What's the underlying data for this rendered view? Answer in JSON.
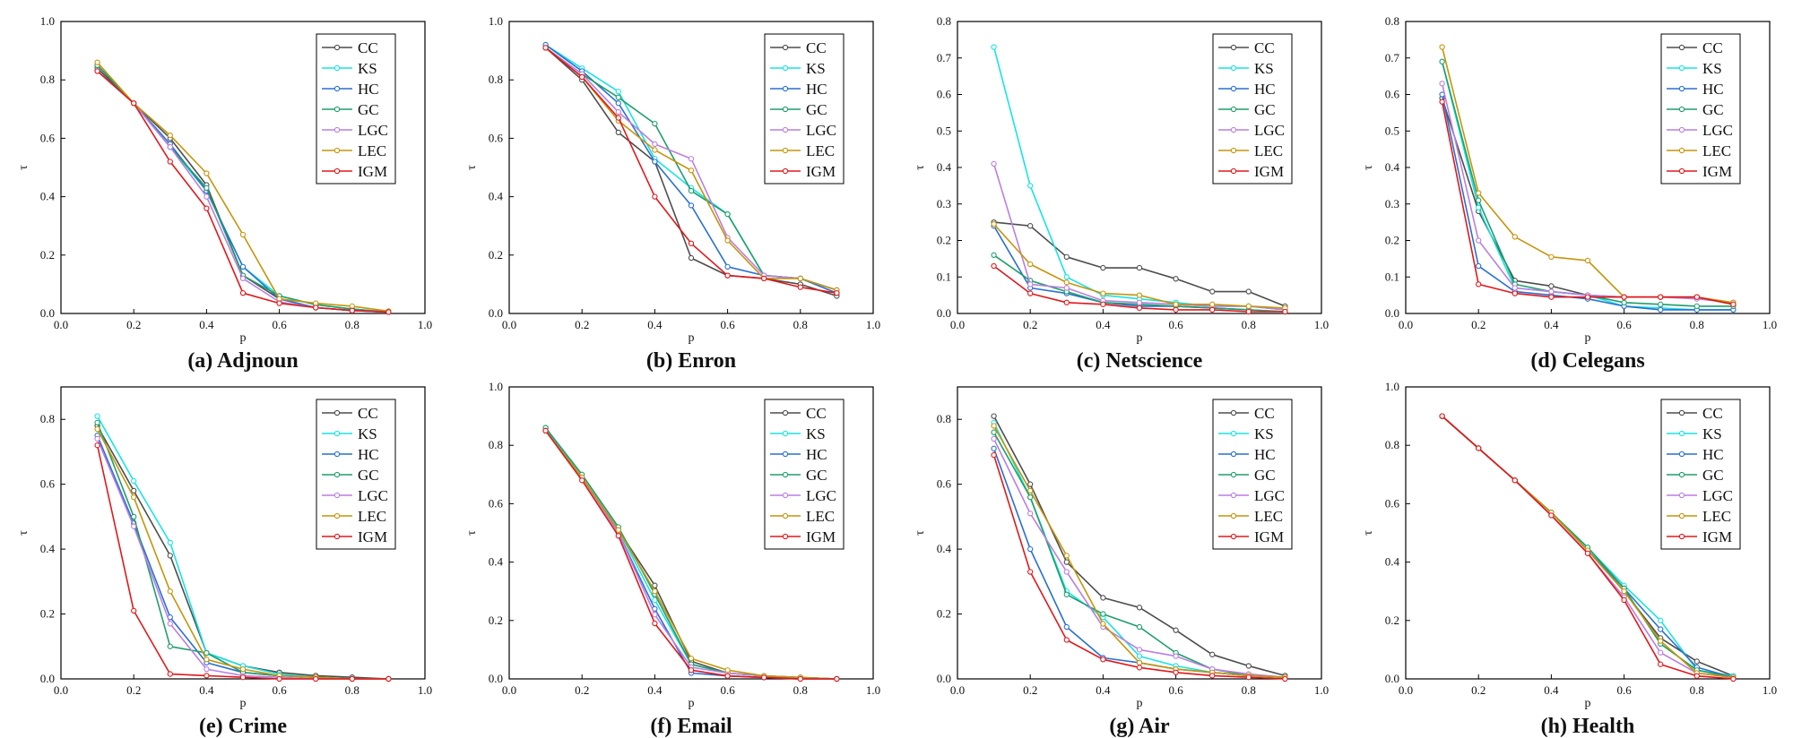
{
  "colors": {
    "CC": "#4d4d4d",
    "KS": "#19e3e3",
    "HC": "#2a6fd1",
    "GC": "#1f9e6b",
    "LGC": "#bb7fe0",
    "LEC": "#c4950c",
    "IGM": "#e0181c"
  },
  "chart_data": [
    {
      "type": "line",
      "caption": "(a) Adjnoun",
      "xlabel": "p",
      "ylabel": "τ",
      "xlim": [
        0.0,
        1.0
      ],
      "ylim": [
        0.0,
        1.0
      ],
      "xticks": [
        "0.0",
        "0.2",
        "0.4",
        "0.6",
        "0.8",
        "1.0"
      ],
      "yticks": [
        "0.0",
        "0.2",
        "0.4",
        "0.6",
        "0.8",
        "1.0"
      ],
      "x": [
        0.1,
        0.2,
        0.3,
        0.4,
        0.5,
        0.6,
        0.7,
        0.8,
        0.9
      ],
      "series": [
        {
          "name": "CC",
          "values": [
            0.84,
            0.72,
            0.6,
            0.44,
            0.13,
            0.05,
            0.02,
            0.01,
            0.005
          ]
        },
        {
          "name": "KS",
          "values": [
            0.85,
            0.72,
            0.57,
            0.42,
            0.16,
            0.06,
            0.03,
            0.015,
            0.005
          ]
        },
        {
          "name": "HC",
          "values": [
            0.85,
            0.72,
            0.58,
            0.42,
            0.16,
            0.05,
            0.02,
            0.01,
            0.005
          ]
        },
        {
          "name": "GC",
          "values": [
            0.85,
            0.72,
            0.57,
            0.43,
            0.13,
            0.06,
            0.03,
            0.015,
            0.005
          ]
        },
        {
          "name": "LGC",
          "values": [
            0.83,
            0.72,
            0.57,
            0.4,
            0.12,
            0.04,
            0.02,
            0.01,
            0.005
          ]
        },
        {
          "name": "LEC",
          "values": [
            0.86,
            0.72,
            0.61,
            0.48,
            0.27,
            0.05,
            0.035,
            0.025,
            0.008
          ]
        },
        {
          "name": "IGM",
          "values": [
            0.83,
            0.72,
            0.52,
            0.36,
            0.07,
            0.035,
            0.02,
            0.01,
            0.005
          ]
        }
      ]
    },
    {
      "type": "line",
      "caption": "(b) Enron",
      "xlabel": "p",
      "ylabel": "τ",
      "xlim": [
        0.0,
        1.0
      ],
      "ylim": [
        0.0,
        1.0
      ],
      "xticks": [
        "0.0",
        "0.2",
        "0.4",
        "0.6",
        "0.8",
        "1.0"
      ],
      "yticks": [
        "0.0",
        "0.2",
        "0.4",
        "0.6",
        "0.8",
        "1.0"
      ],
      "x": [
        0.1,
        0.2,
        0.3,
        0.4,
        0.5,
        0.6,
        0.7,
        0.8,
        0.9
      ],
      "series": [
        {
          "name": "CC",
          "values": [
            0.91,
            0.8,
            0.62,
            0.52,
            0.19,
            0.13,
            0.12,
            0.1,
            0.06
          ]
        },
        {
          "name": "KS",
          "values": [
            0.92,
            0.84,
            0.76,
            0.53,
            0.43,
            0.34,
            0.13,
            0.12,
            0.08
          ]
        },
        {
          "name": "HC",
          "values": [
            0.92,
            0.83,
            0.72,
            0.52,
            0.37,
            0.16,
            0.13,
            0.12,
            0.07
          ]
        },
        {
          "name": "GC",
          "values": [
            0.91,
            0.82,
            0.74,
            0.65,
            0.42,
            0.34,
            0.13,
            0.12,
            0.08
          ]
        },
        {
          "name": "LGC",
          "values": [
            0.91,
            0.82,
            0.69,
            0.58,
            0.53,
            0.26,
            0.13,
            0.12,
            0.08
          ]
        },
        {
          "name": "LEC",
          "values": [
            0.91,
            0.81,
            0.66,
            0.56,
            0.49,
            0.25,
            0.12,
            0.12,
            0.08
          ]
        },
        {
          "name": "IGM",
          "values": [
            0.91,
            0.81,
            0.67,
            0.4,
            0.24,
            0.13,
            0.12,
            0.09,
            0.07
          ]
        }
      ]
    },
    {
      "type": "line",
      "caption": "(c) Netscience",
      "xlabel": "p",
      "ylabel": "τ",
      "xlim": [
        0.0,
        1.0
      ],
      "ylim": [
        0.0,
        0.8
      ],
      "xticks": [
        "0.0",
        "0.2",
        "0.4",
        "0.6",
        "0.8",
        "1.0"
      ],
      "yticks": [
        "0.0",
        "0.1",
        "0.2",
        "0.3",
        "0.4",
        "0.5",
        "0.6",
        "0.7",
        "0.8"
      ],
      "x": [
        0.1,
        0.2,
        0.3,
        0.4,
        0.5,
        0.6,
        0.7,
        0.8,
        0.9
      ],
      "series": [
        {
          "name": "CC",
          "values": [
            0.25,
            0.24,
            0.155,
            0.125,
            0.125,
            0.095,
            0.06,
            0.06,
            0.02
          ]
        },
        {
          "name": "KS",
          "values": [
            0.73,
            0.35,
            0.1,
            0.05,
            0.04,
            0.03,
            0.02,
            0.02,
            0.01
          ]
        },
        {
          "name": "HC",
          "values": [
            0.24,
            0.07,
            0.055,
            0.03,
            0.02,
            0.02,
            0.015,
            0.01,
            0.005
          ]
        },
        {
          "name": "GC",
          "values": [
            0.16,
            0.09,
            0.06,
            0.03,
            0.025,
            0.02,
            0.015,
            0.01,
            0.005
          ]
        },
        {
          "name": "LGC",
          "values": [
            0.41,
            0.08,
            0.07,
            0.035,
            0.03,
            0.025,
            0.02,
            0.02,
            0.01
          ]
        },
        {
          "name": "LEC",
          "values": [
            0.245,
            0.135,
            0.085,
            0.055,
            0.05,
            0.025,
            0.025,
            0.02,
            0.015
          ]
        },
        {
          "name": "IGM",
          "values": [
            0.13,
            0.055,
            0.03,
            0.025,
            0.015,
            0.01,
            0.01,
            0.005,
            0.005
          ]
        }
      ]
    },
    {
      "type": "line",
      "caption": "(d) Celegans",
      "xlabel": "p",
      "ylabel": "τ",
      "xlim": [
        0.0,
        1.0
      ],
      "ylim": [
        0.0,
        0.8
      ],
      "xticks": [
        "0.0",
        "0.2",
        "0.4",
        "0.6",
        "0.8",
        "1.0"
      ],
      "yticks": [
        "0.0",
        "0.1",
        "0.2",
        "0.3",
        "0.4",
        "0.5",
        "0.6",
        "0.7",
        "0.8"
      ],
      "x": [
        0.1,
        0.2,
        0.3,
        0.4,
        0.5,
        0.6,
        0.7,
        0.8,
        0.9
      ],
      "series": [
        {
          "name": "CC",
          "values": [
            0.59,
            0.28,
            0.09,
            0.075,
            0.05,
            0.045,
            0.045,
            0.045,
            0.025
          ]
        },
        {
          "name": "KS",
          "values": [
            0.69,
            0.29,
            0.07,
            0.06,
            0.05,
            0.02,
            0.015,
            0.01,
            0.01
          ]
        },
        {
          "name": "HC",
          "values": [
            0.6,
            0.13,
            0.06,
            0.05,
            0.04,
            0.02,
            0.01,
            0.01,
            0.01
          ]
        },
        {
          "name": "GC",
          "values": [
            0.69,
            0.31,
            0.08,
            0.06,
            0.05,
            0.03,
            0.025,
            0.02,
            0.02
          ]
        },
        {
          "name": "LGC",
          "values": [
            0.63,
            0.2,
            0.07,
            0.06,
            0.05,
            0.045,
            0.045,
            0.04,
            0.03
          ]
        },
        {
          "name": "LEC",
          "values": [
            0.73,
            0.33,
            0.21,
            0.155,
            0.145,
            0.045,
            0.045,
            0.045,
            0.03
          ]
        },
        {
          "name": "IGM",
          "values": [
            0.58,
            0.08,
            0.055,
            0.045,
            0.045,
            0.045,
            0.045,
            0.045,
            0.025
          ]
        }
      ]
    },
    {
      "type": "line",
      "caption": "(e) Crime",
      "xlabel": "p",
      "ylabel": "τ",
      "xlim": [
        0.0,
        1.0
      ],
      "ylim": [
        0.0,
        0.9
      ],
      "xticks": [
        "0.0",
        "0.2",
        "0.4",
        "0.6",
        "0.8",
        "1.0"
      ],
      "yticks": [
        "0.0",
        "0.2",
        "0.4",
        "0.6",
        "0.8"
      ],
      "x": [
        0.1,
        0.2,
        0.3,
        0.4,
        0.5,
        0.6,
        0.7,
        0.8,
        0.9
      ],
      "series": [
        {
          "name": "CC",
          "values": [
            0.78,
            0.58,
            0.38,
            0.08,
            0.04,
            0.02,
            0.01,
            0.005,
            0.0
          ]
        },
        {
          "name": "KS",
          "values": [
            0.81,
            0.61,
            0.42,
            0.08,
            0.04,
            0.015,
            0.005,
            0.0,
            0.0
          ]
        },
        {
          "name": "HC",
          "values": [
            0.75,
            0.48,
            0.19,
            0.05,
            0.02,
            0.01,
            0.005,
            0.0,
            0.0
          ]
        },
        {
          "name": "GC",
          "values": [
            0.79,
            0.5,
            0.1,
            0.08,
            0.02,
            0.01,
            0.005,
            0.0,
            0.0
          ]
        },
        {
          "name": "LGC",
          "values": [
            0.74,
            0.47,
            0.17,
            0.03,
            0.01,
            0.005,
            0.0,
            0.0,
            0.0
          ]
        },
        {
          "name": "LEC",
          "values": [
            0.77,
            0.56,
            0.27,
            0.06,
            0.03,
            0.01,
            0.005,
            0.0,
            0.0
          ]
        },
        {
          "name": "IGM",
          "values": [
            0.72,
            0.21,
            0.015,
            0.01,
            0.005,
            0.0,
            0.0,
            0.0,
            0.0
          ]
        }
      ]
    },
    {
      "type": "line",
      "caption": "(f) Email",
      "xlabel": "p",
      "ylabel": "τ",
      "xlim": [
        0.0,
        1.0
      ],
      "ylim": [
        0.0,
        1.0
      ],
      "xticks": [
        "0.0",
        "0.2",
        "0.4",
        "0.6",
        "0.8",
        "1.0"
      ],
      "yticks": [
        "0.0",
        "0.2",
        "0.4",
        "0.6",
        "0.8",
        "1.0"
      ],
      "x": [
        0.1,
        0.2,
        0.3,
        0.4,
        0.5,
        0.6,
        0.7,
        0.8,
        0.9
      ],
      "series": [
        {
          "name": "CC",
          "values": [
            0.85,
            0.69,
            0.51,
            0.32,
            0.06,
            0.02,
            0.01,
            0.005,
            0.0
          ]
        },
        {
          "name": "KS",
          "values": [
            0.86,
            0.69,
            0.51,
            0.27,
            0.05,
            0.02,
            0.01,
            0.005,
            0.0
          ]
        },
        {
          "name": "HC",
          "values": [
            0.85,
            0.69,
            0.5,
            0.24,
            0.02,
            0.01,
            0.005,
            0.0,
            0.0
          ]
        },
        {
          "name": "GC",
          "values": [
            0.86,
            0.7,
            0.52,
            0.29,
            0.05,
            0.02,
            0.01,
            0.005,
            0.0
          ]
        },
        {
          "name": "LGC",
          "values": [
            0.85,
            0.69,
            0.5,
            0.22,
            0.04,
            0.02,
            0.01,
            0.005,
            0.0
          ]
        },
        {
          "name": "LEC",
          "values": [
            0.85,
            0.69,
            0.51,
            0.3,
            0.07,
            0.03,
            0.01,
            0.005,
            0.0
          ]
        },
        {
          "name": "IGM",
          "values": [
            0.85,
            0.68,
            0.49,
            0.19,
            0.03,
            0.01,
            0.005,
            0.0,
            0.0
          ]
        }
      ]
    },
    {
      "type": "line",
      "caption": "(g) Air",
      "xlabel": "p",
      "ylabel": "τ",
      "xlim": [
        0.0,
        1.0
      ],
      "ylim": [
        0.0,
        0.9
      ],
      "xticks": [
        "0.0",
        "0.2",
        "0.4",
        "0.6",
        "0.8",
        "1.0"
      ],
      "yticks": [
        "0.0",
        "0.2",
        "0.4",
        "0.6",
        "0.8"
      ],
      "x": [
        0.1,
        0.2,
        0.3,
        0.4,
        0.5,
        0.6,
        0.7,
        0.8,
        0.9
      ],
      "series": [
        {
          "name": "CC",
          "values": [
            0.81,
            0.6,
            0.36,
            0.25,
            0.22,
            0.15,
            0.075,
            0.04,
            0.01
          ]
        },
        {
          "name": "KS",
          "values": [
            0.79,
            0.56,
            0.27,
            0.19,
            0.07,
            0.04,
            0.02,
            0.01,
            0.005
          ]
        },
        {
          "name": "HC",
          "values": [
            0.71,
            0.4,
            0.16,
            0.065,
            0.05,
            0.03,
            0.02,
            0.01,
            0.005
          ]
        },
        {
          "name": "GC",
          "values": [
            0.76,
            0.56,
            0.26,
            0.2,
            0.16,
            0.08,
            0.03,
            0.01,
            0.005
          ]
        },
        {
          "name": "LGC",
          "values": [
            0.74,
            0.51,
            0.33,
            0.16,
            0.09,
            0.07,
            0.03,
            0.015,
            0.005
          ]
        },
        {
          "name": "LEC",
          "values": [
            0.78,
            0.58,
            0.38,
            0.17,
            0.05,
            0.03,
            0.02,
            0.01,
            0.005
          ]
        },
        {
          "name": "IGM",
          "values": [
            0.69,
            0.33,
            0.12,
            0.06,
            0.035,
            0.02,
            0.01,
            0.005,
            0.0
          ]
        }
      ]
    },
    {
      "type": "line",
      "caption": "(h) Health",
      "xlabel": "p",
      "ylabel": "τ",
      "xlim": [
        0.0,
        1.0
      ],
      "ylim": [
        0.0,
        1.0
      ],
      "xticks": [
        "0.0",
        "0.2",
        "0.4",
        "0.6",
        "0.8",
        "1.0"
      ],
      "yticks": [
        "0.0",
        "0.2",
        "0.4",
        "0.6",
        "0.8",
        "1.0"
      ],
      "x": [
        0.1,
        0.2,
        0.3,
        0.4,
        0.5,
        0.6,
        0.7,
        0.8,
        0.9
      ],
      "series": [
        {
          "name": "CC",
          "values": [
            0.9,
            0.79,
            0.68,
            0.57,
            0.44,
            0.3,
            0.14,
            0.06,
            0.01
          ]
        },
        {
          "name": "KS",
          "values": [
            0.9,
            0.79,
            0.68,
            0.57,
            0.45,
            0.32,
            0.2,
            0.03,
            0.01
          ]
        },
        {
          "name": "HC",
          "values": [
            0.9,
            0.79,
            0.68,
            0.57,
            0.44,
            0.31,
            0.17,
            0.04,
            0.005
          ]
        },
        {
          "name": "GC",
          "values": [
            0.9,
            0.79,
            0.68,
            0.57,
            0.45,
            0.31,
            0.12,
            0.03,
            0.005
          ]
        },
        {
          "name": "LGC",
          "values": [
            0.9,
            0.79,
            0.68,
            0.56,
            0.43,
            0.28,
            0.09,
            0.02,
            0.005
          ]
        },
        {
          "name": "LEC",
          "values": [
            0.9,
            0.79,
            0.68,
            0.57,
            0.44,
            0.3,
            0.13,
            0.02,
            0.005
          ]
        },
        {
          "name": "IGM",
          "values": [
            0.9,
            0.79,
            0.68,
            0.56,
            0.43,
            0.27,
            0.05,
            0.01,
            0.0
          ]
        }
      ]
    }
  ]
}
